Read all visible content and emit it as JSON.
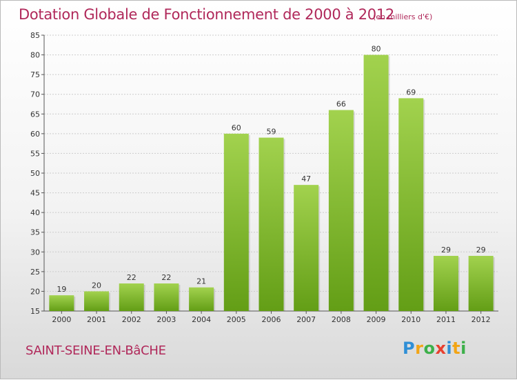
{
  "title": "Dotation Globale de Fonctionnement de 2000 à 2012",
  "unit": "(en milliers d'€)",
  "place": "SAINT-SEINE-EN-BâCHE",
  "logo": "Proxiti",
  "colors": {
    "title": "#b0285a",
    "bar_light": "#a2d24e",
    "bar_dark": "#639e16",
    "grid": "#cccccc"
  },
  "chart_data": {
    "type": "bar",
    "title": "Dotation Globale de Fonctionnement de 2000 à 2012",
    "subtitle": "(en milliers d'€)",
    "categories": [
      "2000",
      "2001",
      "2002",
      "2003",
      "2004",
      "2005",
      "2006",
      "2007",
      "2008",
      "2009",
      "2010",
      "2011",
      "2012"
    ],
    "values": [
      19,
      20,
      22,
      22,
      21,
      60,
      59,
      47,
      66,
      80,
      69,
      29,
      29
    ],
    "ylim": [
      15,
      85
    ],
    "yticks": [
      15,
      20,
      25,
      30,
      35,
      40,
      45,
      50,
      55,
      60,
      65,
      70,
      75,
      80,
      85
    ],
    "grid": true,
    "xlabel": "",
    "ylabel": ""
  }
}
